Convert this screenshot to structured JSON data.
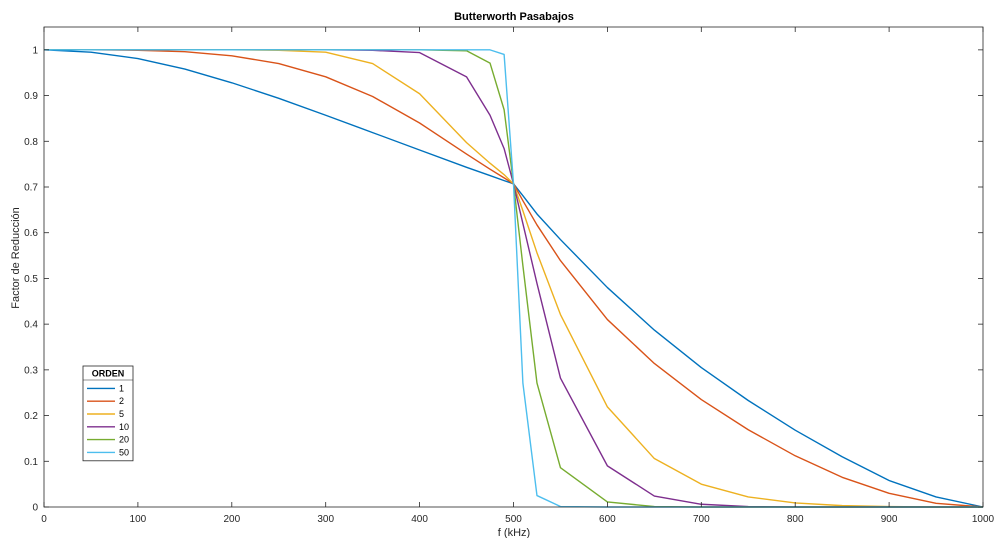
{
  "chart_data": {
    "type": "line",
    "title": "Butterworth Pasabajos",
    "xlabel": "f (kHz)",
    "ylabel": "Factor de Reducción",
    "xlim": [
      0,
      1000
    ],
    "ylim": [
      0,
      1.05
    ],
    "xticks": [
      0,
      100,
      200,
      300,
      400,
      500,
      600,
      700,
      800,
      900,
      1000
    ],
    "yticks": [
      0,
      0.1,
      0.2,
      0.3,
      0.4,
      0.5,
      0.6,
      0.7,
      0.8,
      0.9,
      1
    ],
    "grid": false,
    "legend": {
      "title": "ORDEN",
      "placement": "bottom-left",
      "entries": [
        "1",
        "2",
        "5",
        "10",
        "20",
        "50"
      ]
    },
    "x": [
      0,
      50,
      100,
      150,
      200,
      250,
      300,
      350,
      400,
      450,
      475,
      490,
      500,
      510,
      525,
      550,
      600,
      650,
      700,
      750,
      800,
      850,
      900,
      950,
      1000
    ],
    "series": [
      {
        "name": "1",
        "color": "#0072BD",
        "values": [
          1.0,
          0.995,
          0.981,
          0.958,
          0.928,
          0.894,
          0.857,
          0.819,
          0.781,
          0.743,
          0.725,
          0.714,
          0.707,
          0.681,
          0.641,
          0.585,
          0.48,
          0.387,
          0.305,
          0.233,
          0.168,
          0.11,
          0.058,
          0.022,
          0.0
        ]
      },
      {
        "name": "2",
        "color": "#D95319",
        "values": [
          1.0,
          1.0,
          0.999,
          0.996,
          0.987,
          0.97,
          0.941,
          0.898,
          0.84,
          0.772,
          0.739,
          0.72,
          0.707,
          0.67,
          0.617,
          0.539,
          0.41,
          0.314,
          0.235,
          0.169,
          0.112,
          0.065,
          0.03,
          0.008,
          0.0
        ]
      },
      {
        "name": "5",
        "color": "#EDB120",
        "values": [
          1.0,
          1.0,
          1.0,
          1.0,
          1.0,
          0.999,
          0.995,
          0.97,
          0.904,
          0.797,
          0.752,
          0.727,
          0.707,
          0.648,
          0.556,
          0.421,
          0.219,
          0.106,
          0.05,
          0.022,
          0.009,
          0.003,
          0.001,
          0.0,
          0.0
        ]
      },
      {
        "name": "10",
        "color": "#7E2F8E",
        "values": [
          1.0,
          1.0,
          1.0,
          1.0,
          1.0,
          1.0,
          1.0,
          0.999,
          0.994,
          0.941,
          0.857,
          0.784,
          0.707,
          0.62,
          0.489,
          0.282,
          0.09,
          0.024,
          0.006,
          0.001,
          0.0,
          0.0,
          0.0,
          0.0,
          0.0
        ]
      },
      {
        "name": "20",
        "color": "#77AC30",
        "values": [
          1.0,
          1.0,
          1.0,
          1.0,
          1.0,
          1.0,
          1.0,
          1.0,
          1.0,
          0.998,
          0.971,
          0.869,
          0.707,
          0.528,
          0.271,
          0.086,
          0.011,
          0.001,
          0.0,
          0.0,
          0.0,
          0.0,
          0.0,
          0.0,
          0.0
        ]
      },
      {
        "name": "50",
        "color": "#4DBEEE",
        "values": [
          1.0,
          1.0,
          1.0,
          1.0,
          1.0,
          1.0,
          1.0,
          1.0,
          1.0,
          1.0,
          1.0,
          0.99,
          0.707,
          0.271,
          0.025,
          0.001,
          0.0,
          0.0,
          0.0,
          0.0,
          0.0,
          0.0,
          0.0,
          0.0,
          0.0
        ]
      }
    ]
  }
}
